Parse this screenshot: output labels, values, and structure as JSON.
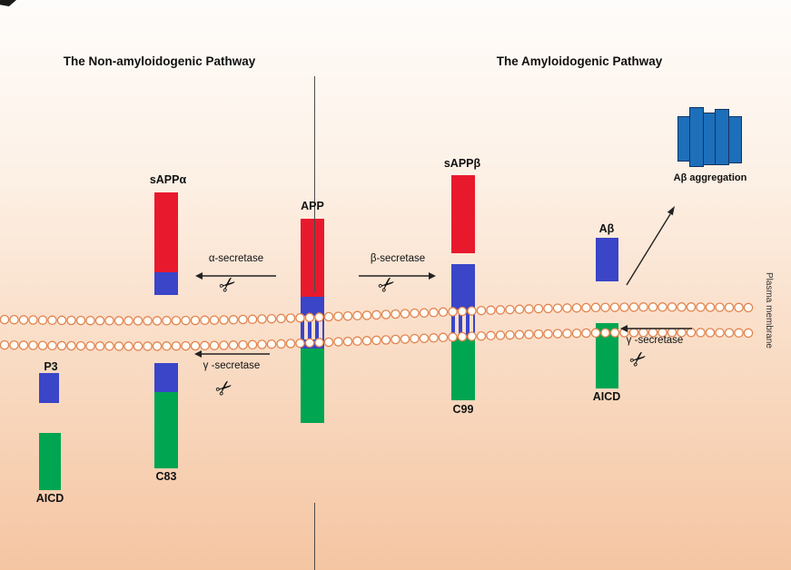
{
  "titles": {
    "left": "The Non-amyloidogenic Pathway",
    "right": "The Amyloidogenic Pathway"
  },
  "center": {
    "app_label": "APP"
  },
  "pathway_left": {
    "sappa_label": "sAPPα",
    "alpha_secretase_label": "α-secretase",
    "gamma_secretase_label": "γ -secretase",
    "c83_label": "C83",
    "p3_label": "P3",
    "aicd_label": "AICD"
  },
  "pathway_right": {
    "sappb_label": "sAPPβ",
    "beta_secretase_label": "β-secretase",
    "gamma_secretase_label": "γ -secretase",
    "c99_label": "C99",
    "abeta_label": "Aβ",
    "aicd_label": "AICD",
    "aggregation_label": "Aβ aggregation"
  },
  "membrane": {
    "label": "Plasma membrane"
  },
  "icons": {
    "scissors": "✂"
  },
  "colors": {
    "red": "#e9192d",
    "blue": "#3a45c8",
    "green": "#00a551",
    "aggregation_blue": "#1d6fba",
    "membrane_outline": "#e2824e"
  }
}
